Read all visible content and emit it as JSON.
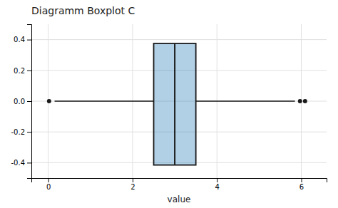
{
  "chart_data": {
    "type": "box",
    "title": "Diagramm Boxplot C",
    "xlabel": "value",
    "color": "#1a1a1a",
    "q1": 2.5,
    "q3": 3.5,
    "median": 3.0,
    "whisker_low": 0.15,
    "whisker_high": 5.85,
    "outliers_x": [
      0.02,
      5.97,
      6.09
    ],
    "outliers_y": [
      0.0,
      0.0,
      0.0
    ],
    "y_center": 0.0,
    "box_top": 0.375,
    "box_bottom": -0.415,
    "xlim": [
      -0.4,
      6.6
    ],
    "ylim": [
      -0.5,
      0.5
    ],
    "xticks": [
      0,
      2,
      4,
      6
    ],
    "yticks": [
      -0.4,
      -0.2,
      {
        "value": 0.0,
        "label": "0.0"
      },
      0.2,
      0.4
    ],
    "grid": true
  }
}
